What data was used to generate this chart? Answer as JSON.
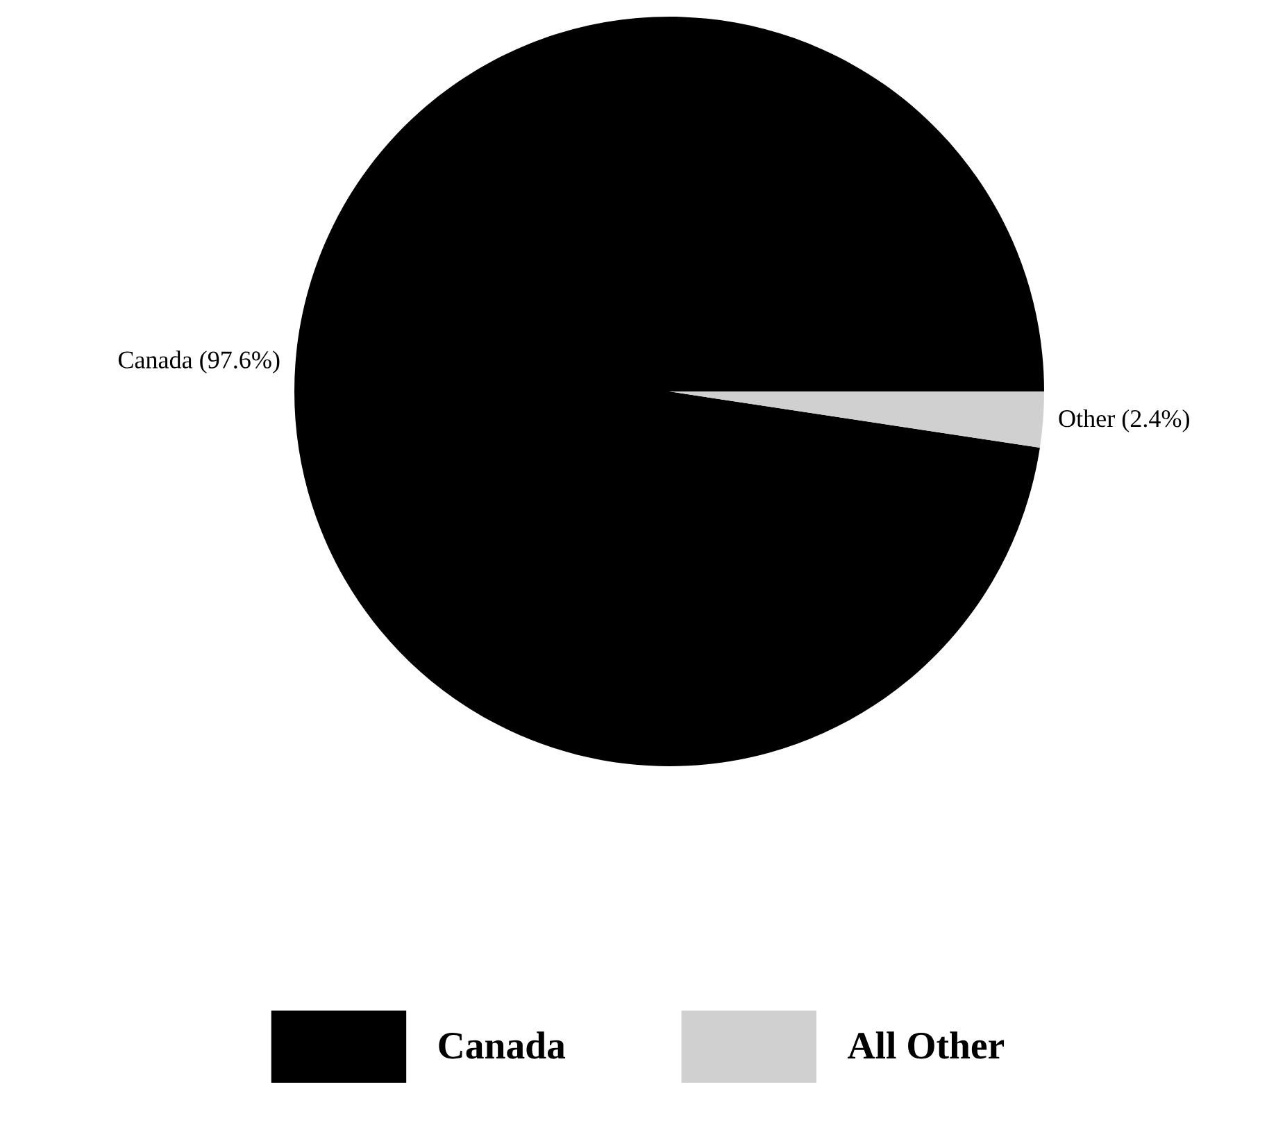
{
  "chart_data": {
    "type": "pie",
    "categories": [
      "Canada",
      "All Other"
    ],
    "values": [
      97.6,
      2.4
    ],
    "value_labels": [
      "Canada (97.6%)",
      "Other (2.4%)"
    ],
    "colors": [
      "#000000",
      "#d0d0d0"
    ],
    "legend": "bottom"
  }
}
